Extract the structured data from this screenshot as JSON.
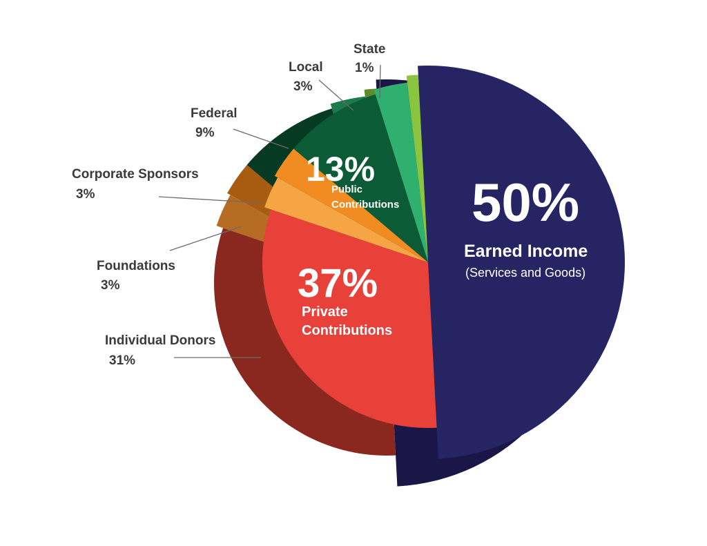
{
  "chart_data": {
    "type": "pie",
    "title": "",
    "slices": [
      {
        "name": "Earned Income",
        "sublabel": "(Services and Goods)",
        "value": 50,
        "label": "50%",
        "color": "#272463",
        "side_color": "#1a1748"
      },
      {
        "name": "Individual Donors",
        "value": 31,
        "label": "31%",
        "color": "#e8413a",
        "side_color": "#8a2820"
      },
      {
        "name": "Foundations",
        "value": 3,
        "label": "3%",
        "color": "#f6a544",
        "side_color": "#b66c22"
      },
      {
        "name": "Corporate Sponsors",
        "value": 3,
        "label": "3%",
        "color": "#f08c21",
        "side_color": "#a85c12"
      },
      {
        "name": "Federal",
        "value": 9,
        "label": "9%",
        "color": "#0b5b36",
        "side_color": "#073a23"
      },
      {
        "name": "Local",
        "value": 3,
        "label": "3%",
        "color": "#2fb06e",
        "side_color": "#1d7a4a"
      },
      {
        "name": "State",
        "value": 1,
        "label": "1%",
        "color": "#8bc540",
        "side_color": "#5e8c28"
      }
    ],
    "groups": [
      {
        "name": "Earned Income",
        "sublabel": "(Services and Goods)",
        "value": 50,
        "label": "50%"
      },
      {
        "name": "Private Contributions",
        "line1": "Private",
        "line2": "Contributions",
        "value": 37,
        "label": "37%"
      },
      {
        "name": "Public Contributions",
        "line1": "Public",
        "line2": "Contributions",
        "value": 13,
        "label": "13%"
      }
    ]
  }
}
